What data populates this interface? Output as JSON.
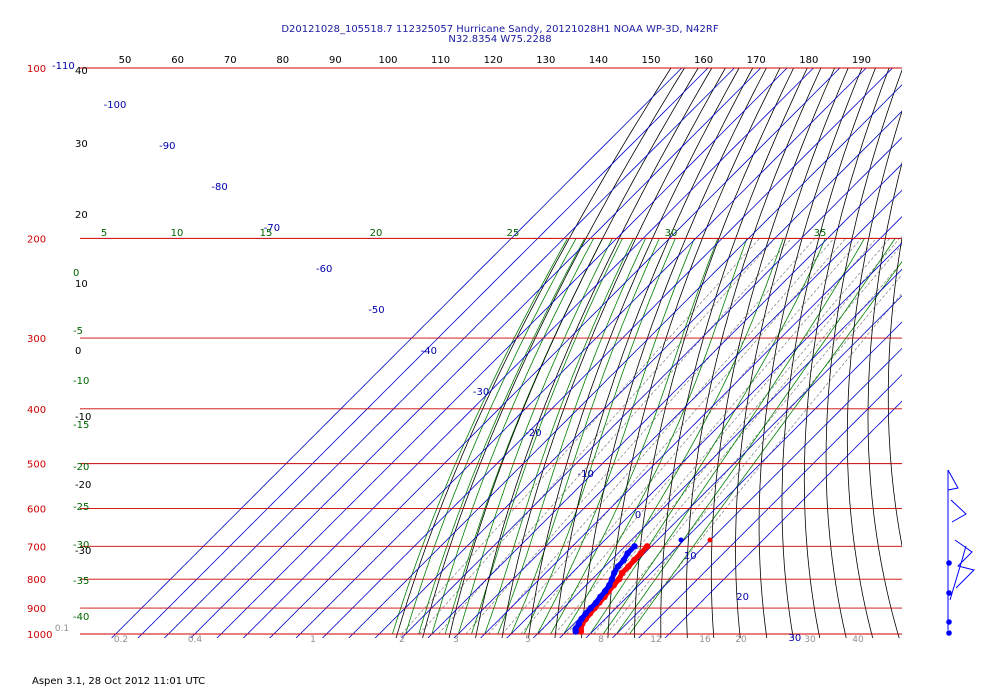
{
  "chart_data": {
    "type": "skew-t",
    "title": "D20121028_105518.7 112325057 Hurricane Sandy, 20121028H1 NOAA WP-3D, N42RF",
    "subtitle": "N32.8354 W75.2288",
    "footer": "Aspen 3.1, 28 Oct 2012  11:01 UTC",
    "pressure_levels": [
      100,
      200,
      300,
      400,
      500,
      600,
      700,
      800,
      900,
      1000
    ],
    "top_scale_labels": [
      "50",
      "60",
      "70",
      "80",
      "90",
      "100",
      "110",
      "120",
      "130",
      "140",
      "150",
      "160",
      "170",
      "180",
      "190"
    ],
    "isotherm_labels": [
      "-100",
      "-90",
      "-80",
      "-70",
      "-60",
      "-50",
      "-40",
      "-30",
      "-20",
      "-10",
      "0",
      "10",
      "20",
      "30"
    ],
    "dry_adiabat_labels": [
      "40",
      "30",
      "20",
      "10",
      "0",
      "-10",
      "-20",
      "-30"
    ],
    "moist_adiabat_labels": [
      "5",
      "10",
      "15",
      "20",
      "25",
      "30",
      "35"
    ],
    "left_moist_labels": [
      "0",
      "-5",
      "-10",
      "-15",
      "-20",
      "-25",
      "-30",
      "-35",
      "-40"
    ],
    "mixing_ratio_labels": [
      "0.1",
      "0.2",
      "0.4",
      "1",
      "2",
      "3",
      "5",
      "8",
      "12",
      "16",
      "20",
      "30",
      "40"
    ],
    "top_left_label": "-110",
    "series": [
      {
        "color": "#ff0000",
        "pressure": [
          700,
          720,
          740,
          760,
          780,
          800,
          820,
          840,
          860,
          880,
          900,
          920,
          940,
          960,
          980,
          990
        ],
        "temperature": [
          18.4,
          18.6,
          18.7,
          19.0,
          19.0,
          20.2,
          20.5,
          20.8,
          21.4,
          21.6,
          21.9,
          22.2,
          22.6,
          23.2,
          24.6,
          25.6
        ]
      },
      {
        "color": "#0000ff",
        "pressure": [
          700,
          720,
          740,
          760,
          780,
          800,
          820,
          840,
          860,
          880,
          900,
          920,
          940,
          960,
          980,
          990
        ],
        "dewpoint": [
          13.6,
          13.6,
          14.7,
          15.0,
          16.0,
          17.5,
          18.8,
          19.5,
          19.8,
          20.4,
          20.4,
          20.6,
          21.0,
          21.9,
          22.6,
          23.6
        ]
      }
    ],
    "wind_profile": {
      "color": "#0000ff",
      "barb_levels": [
        700,
        800,
        900,
        1000
      ]
    },
    "colors": {
      "isobar": "#cc0000",
      "isotherm": "#0000cc",
      "dry_adiabat": "#000000",
      "moist_adiabat": "#008000",
      "mixing_ratio": "#808080"
    }
  }
}
